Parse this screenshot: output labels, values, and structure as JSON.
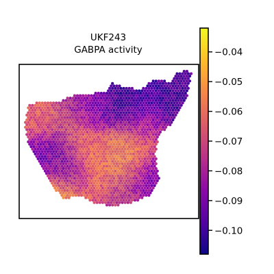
{
  "chart_data": {
    "type": "heatmap",
    "title_lines": [
      "UKF243",
      "GABPA activity"
    ],
    "colormap": "plasma",
    "colormap_stops": [
      "#0d0887",
      "#5402a3",
      "#8b0aa5",
      "#b93289",
      "#db5c68",
      "#f48849",
      "#febd2a",
      "#f0f921"
    ],
    "color_range": [
      -0.108,
      -0.032
    ],
    "colorbar_ticks": [
      -0.04,
      -0.05,
      -0.06,
      -0.07,
      -0.08,
      -0.09,
      -0.1
    ],
    "colorbar_tick_labels": [
      "−0.04",
      "−0.05",
      "−0.06",
      "−0.07",
      "−0.08",
      "−0.09",
      "−0.10"
    ],
    "grid": false,
    "legend": "colorbar-right",
    "spot_range": [
      0,
      1
    ],
    "tissue_outline": [
      [
        0.05,
        0.27
      ],
      [
        0.1,
        0.24
      ],
      [
        0.2,
        0.25
      ],
      [
        0.3,
        0.2
      ],
      [
        0.4,
        0.19
      ],
      [
        0.48,
        0.18
      ],
      [
        0.52,
        0.12
      ],
      [
        0.6,
        0.15
      ],
      [
        0.68,
        0.16
      ],
      [
        0.72,
        0.12
      ],
      [
        0.78,
        0.09
      ],
      [
        0.84,
        0.12
      ],
      [
        0.88,
        0.06
      ],
      [
        0.92,
        0.04
      ],
      [
        0.96,
        0.05
      ],
      [
        0.94,
        0.2
      ],
      [
        0.9,
        0.3
      ],
      [
        0.85,
        0.39
      ],
      [
        0.78,
        0.46
      ],
      [
        0.76,
        0.58
      ],
      [
        0.78,
        0.75
      ],
      [
        0.73,
        0.85
      ],
      [
        0.62,
        0.9
      ],
      [
        0.52,
        0.92
      ],
      [
        0.42,
        0.9
      ],
      [
        0.33,
        0.85
      ],
      [
        0.25,
        0.88
      ],
      [
        0.18,
        0.78
      ],
      [
        0.12,
        0.66
      ],
      [
        0.06,
        0.55
      ],
      [
        0.03,
        0.4
      ]
    ],
    "clusters": [
      {
        "x": 0.5,
        "y": 0.55,
        "value": -0.06
      },
      {
        "x": 0.62,
        "y": 0.62,
        "value": -0.055
      },
      {
        "x": 0.45,
        "y": 0.72,
        "value": -0.058
      },
      {
        "x": 0.34,
        "y": 0.48,
        "value": -0.062
      },
      {
        "x": 0.15,
        "y": 0.35,
        "value": -0.065
      },
      {
        "x": 0.7,
        "y": 0.38,
        "value": -0.068
      },
      {
        "x": 0.6,
        "y": 0.25,
        "value": -0.1
      },
      {
        "x": 0.72,
        "y": 0.3,
        "value": -0.103
      },
      {
        "x": 0.85,
        "y": 0.2,
        "value": -0.098
      },
      {
        "x": 0.45,
        "y": 0.3,
        "value": -0.092
      },
      {
        "x": 0.2,
        "y": 0.55,
        "value": -0.09
      },
      {
        "x": 0.3,
        "y": 0.75,
        "value": -0.085
      },
      {
        "x": 0.72,
        "y": 0.72,
        "value": -0.088
      },
      {
        "x": 0.9,
        "y": 0.1,
        "value": -0.095
      },
      {
        "x": 0.35,
        "y": 0.28,
        "value": -0.08
      },
      {
        "x": 0.55,
        "y": 0.85,
        "value": -0.075
      },
      {
        "x": 0.26,
        "y": 0.87,
        "value": -0.045
      }
    ]
  }
}
